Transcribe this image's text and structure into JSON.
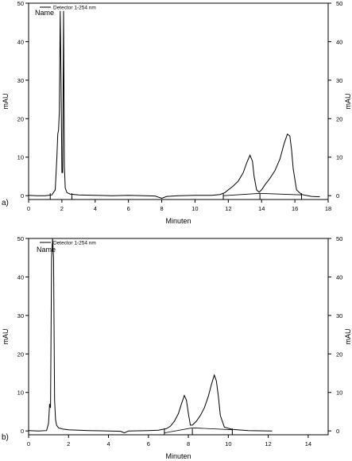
{
  "chart_data": [
    {
      "type": "line",
      "panel_label": "a)",
      "legend": "Detector 1-254 nm",
      "peak_label": "Name",
      "xlabel": "Minuten",
      "ylabel_left": "mAU",
      "ylabel_right": "mAU",
      "xlim": [
        0,
        18
      ],
      "ylim": [
        -1,
        50
      ],
      "xticks": [
        0,
        2,
        4,
        6,
        8,
        10,
        12,
        14,
        16,
        18
      ],
      "yticks": [
        0,
        10,
        20,
        30,
        40,
        50
      ],
      "series": [
        {
          "x": [
            0,
            0.5,
            1.0,
            1.4,
            1.6,
            1.7,
            1.75,
            1.8,
            1.85,
            1.9,
            1.95,
            2.0,
            2.05,
            2.1,
            2.15,
            2.2,
            2.3,
            2.5,
            3,
            4,
            5,
            6,
            7,
            7.6,
            8,
            8.3,
            9,
            10,
            11,
            11.5,
            11.8,
            12.0,
            12.3,
            12.6,
            12.9,
            13.1,
            13.3,
            13.45,
            13.55,
            13.7,
            13.85,
            14.0,
            14.2,
            14.5,
            14.8,
            15.1,
            15.35,
            15.55,
            15.7,
            15.8,
            15.9,
            16.1,
            16.4,
            17,
            17.5
          ],
          "y": [
            0.1,
            0,
            0,
            0.2,
            1.5,
            10,
            16,
            17,
            22,
            48,
            30,
            6,
            6,
            48,
            8,
            2,
            0.8,
            0.4,
            0.2,
            0.1,
            0,
            0.1,
            0,
            -0.1,
            -0.7,
            -0.2,
            0,
            0.1,
            0.1,
            0.3,
            0.8,
            1.5,
            2.5,
            3.8,
            6,
            8.5,
            10.5,
            9,
            5,
            1.5,
            0.9,
            1.5,
            2.8,
            4.5,
            6.5,
            9.5,
            13.5,
            16,
            15.5,
            12,
            7,
            1.5,
            0.3,
            -0.2,
            -0.3
          ]
        }
      ],
      "baselines": [
        {
          "x": [
            11.7,
            13.9
          ],
          "y": [
            0,
            0.6
          ]
        },
        {
          "x": [
            13.9,
            16.4
          ],
          "y": [
            0.6,
            0.2
          ]
        }
      ],
      "integration_marks_x": [
        1.3,
        2.6,
        11.7,
        13.9,
        16.4
      ]
    },
    {
      "type": "line",
      "panel_label": "b)",
      "legend": "Detector 1-254 nm",
      "peak_label": "Name",
      "xlabel": "Minuten",
      "ylabel_left": "mAU",
      "ylabel_right": "mAU",
      "xlim": [
        0,
        15
      ],
      "ylim": [
        -1,
        50
      ],
      "xticks": [
        0,
        2,
        4,
        6,
        8,
        10,
        12,
        14
      ],
      "yticks": [
        0,
        10,
        20,
        30,
        40,
        50
      ],
      "series": [
        {
          "x": [
            0,
            0.5,
            0.9,
            1.0,
            1.05,
            1.1,
            1.15,
            1.2,
            1.25,
            1.3,
            1.35,
            1.4,
            1.5,
            1.7,
            2,
            3,
            4,
            4.6,
            4.8,
            5,
            6,
            6.5,
            6.9,
            7.1,
            7.3,
            7.5,
            7.65,
            7.8,
            7.9,
            8.0,
            8.1,
            8.2,
            8.4,
            8.6,
            8.8,
            9.0,
            9.15,
            9.3,
            9.4,
            9.5,
            9.6,
            9.8,
            10.2,
            11,
            12.2
          ],
          "y": [
            0.1,
            0,
            0.1,
            2,
            7,
            6,
            45,
            50,
            45,
            8,
            3,
            1.5,
            0.8,
            0.5,
            0.3,
            0.1,
            0,
            -0.1,
            -0.5,
            0,
            0.1,
            0.2,
            0.6,
            1.2,
            2.5,
            4.5,
            7,
            9.2,
            8,
            4.5,
            1.5,
            1.5,
            2.5,
            4,
            6,
            9,
            12,
            14.5,
            13,
            9,
            4,
            1,
            0.4,
            0.1,
            0
          ]
        }
      ],
      "baselines": [
        {
          "x": [
            6.8,
            8.2
          ],
          "y": [
            -0.5,
            0.8
          ]
        },
        {
          "x": [
            8.2,
            10.2
          ],
          "y": [
            0.8,
            0.3
          ]
        }
      ],
      "integration_marks_x": [
        6.8,
        8.2,
        10.2
      ]
    }
  ]
}
